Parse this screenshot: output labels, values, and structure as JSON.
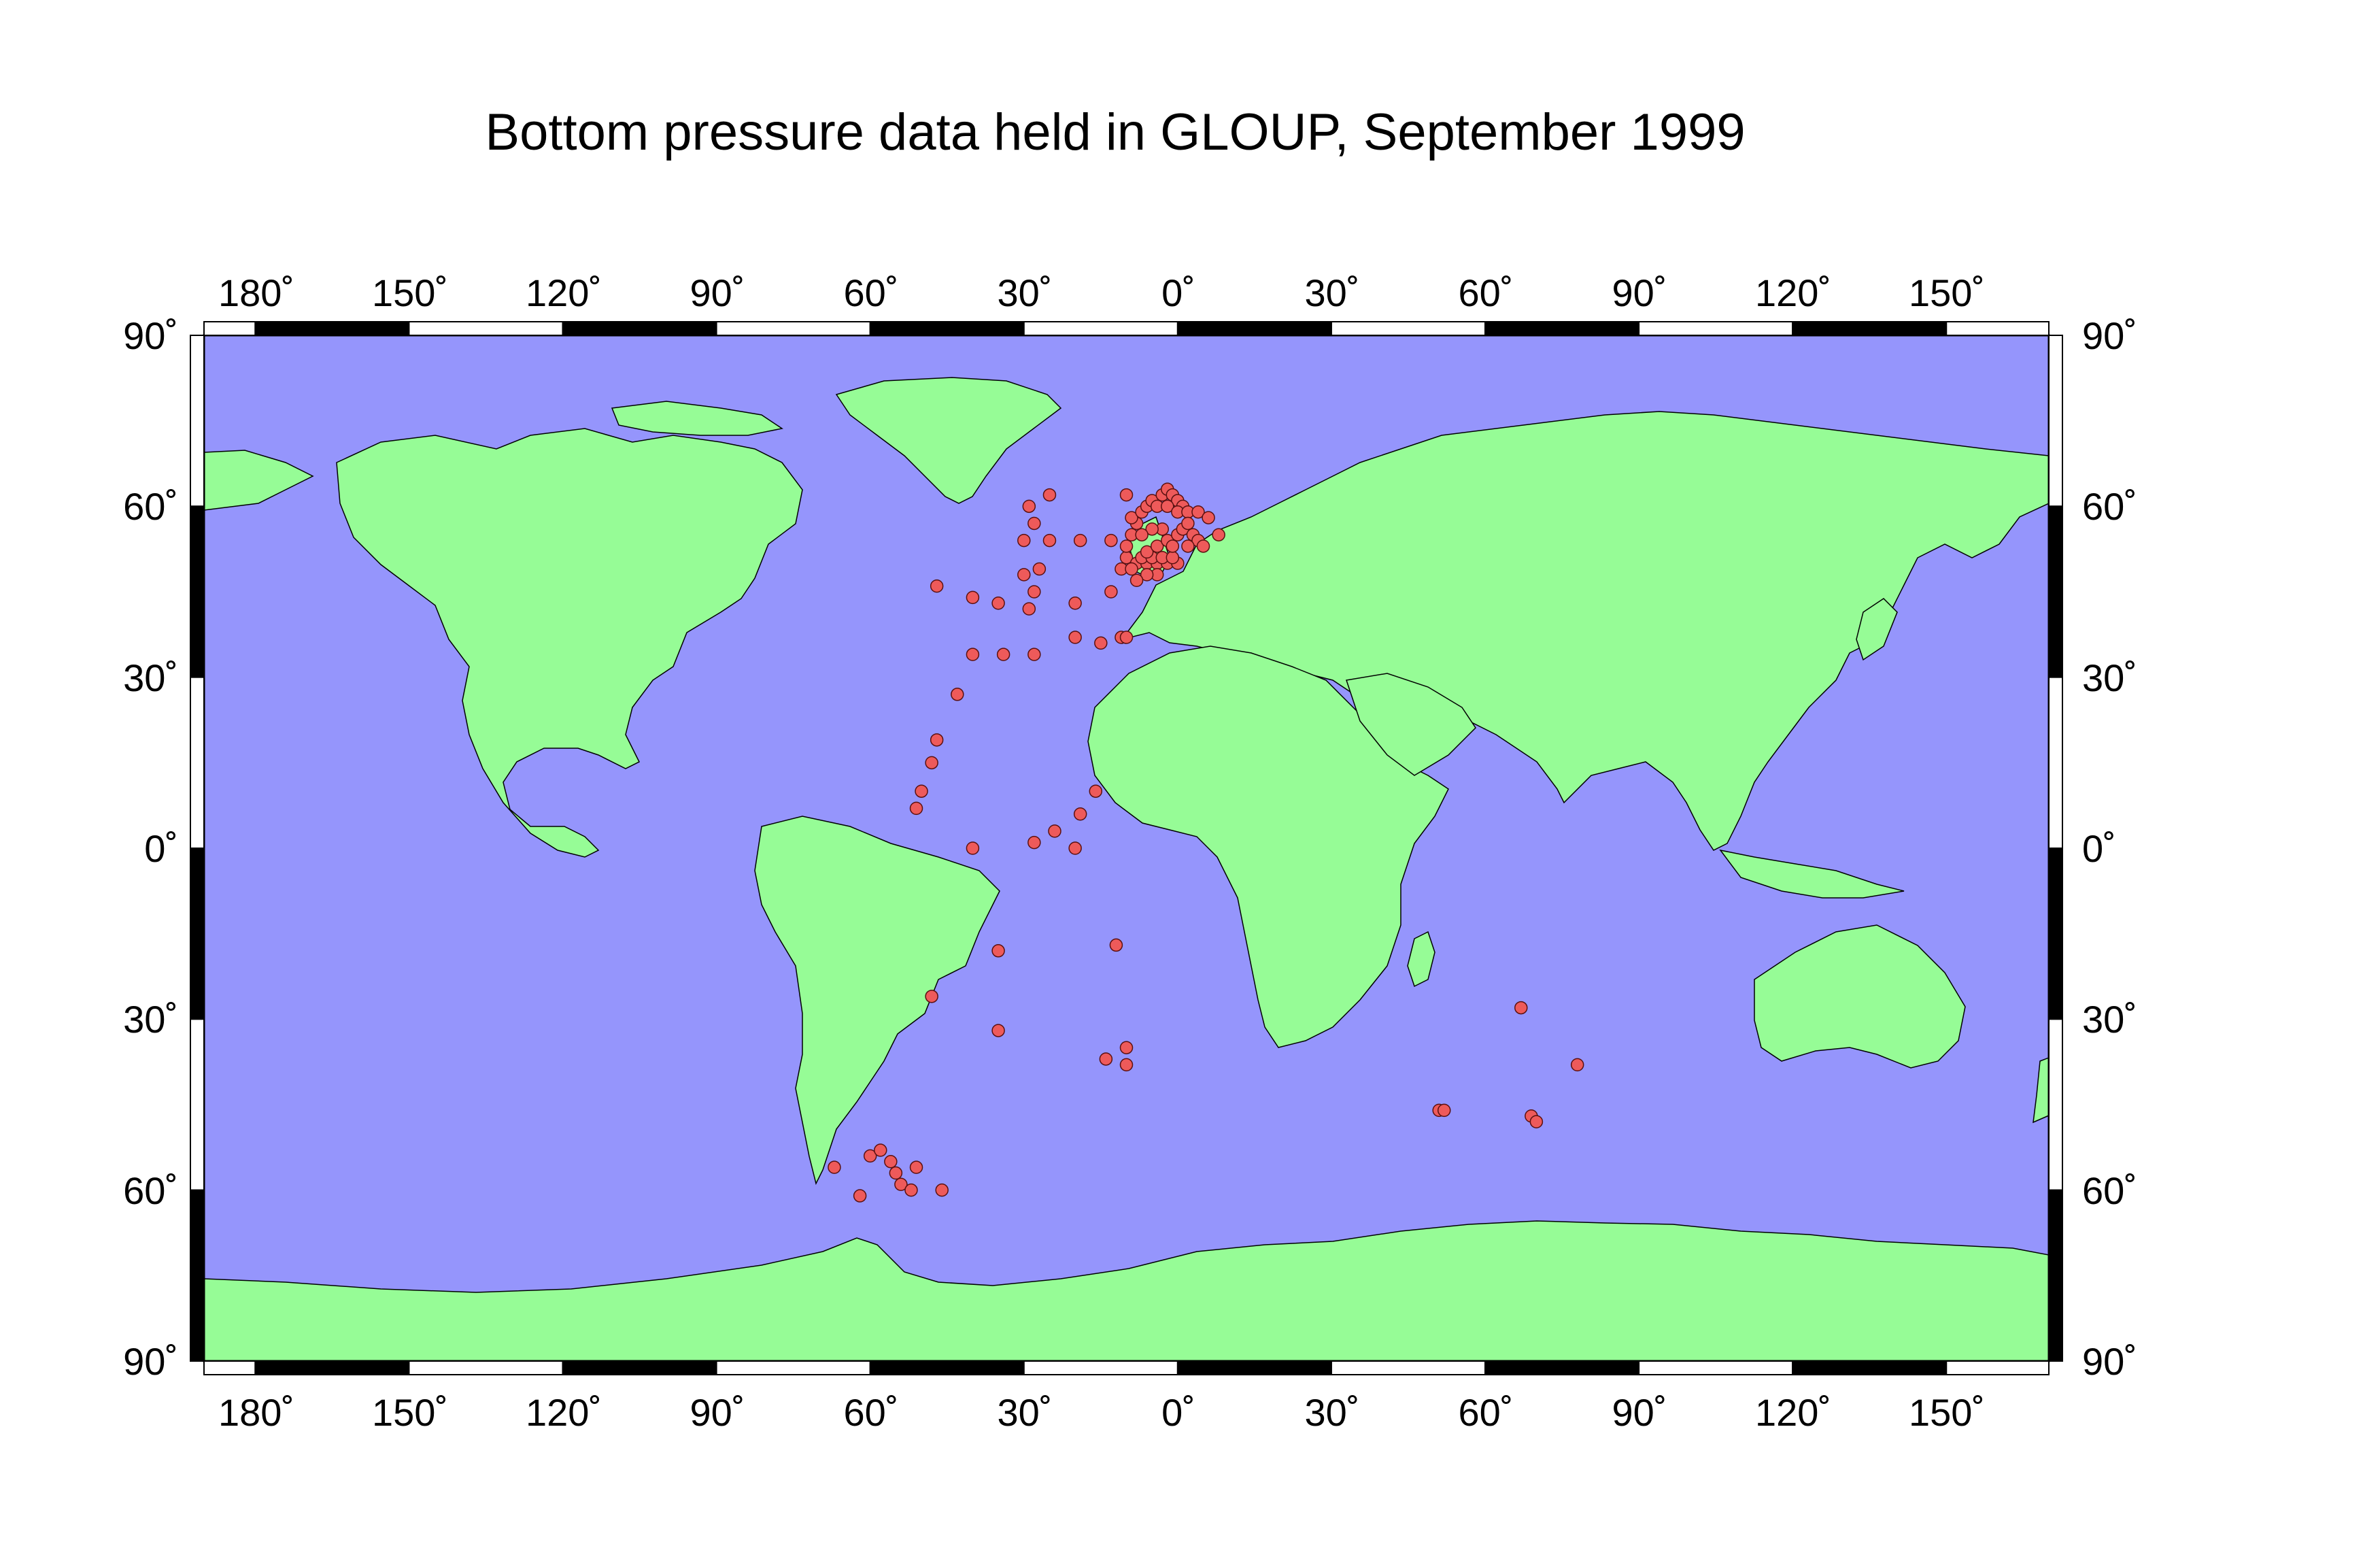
{
  "title": "Bottom pressure data held in GLOUP, September 1999",
  "colors": {
    "ocean": "#9595fc",
    "land": "#96fc96",
    "station": "#ee5a5a",
    "frame_dark": "#000000",
    "frame_light": "#ffffff"
  },
  "axes": {
    "top_labels": [
      "180˚",
      "150˚",
      "120˚",
      "90˚",
      "60˚",
      "30˚",
      "0˚",
      "30˚",
      "60˚",
      "90˚",
      "120˚",
      "150˚"
    ],
    "bottom_labels": [
      "180˚",
      "150˚",
      "120˚",
      "90˚",
      "60˚",
      "30˚",
      "0˚",
      "30˚",
      "60˚",
      "90˚",
      "120˚",
      "150˚"
    ],
    "left_labels": [
      "90˚",
      "60˚",
      "30˚",
      "0˚",
      "30˚",
      "60˚",
      "90˚"
    ],
    "right_labels": [
      "90˚",
      "60˚",
      "30˚",
      "0˚",
      "30˚",
      "60˚",
      "90˚"
    ],
    "lon_range": [
      -190,
      170
    ],
    "lat_range": [
      -90,
      90
    ]
  },
  "map_data": {
    "projection": "equirectangular",
    "layers": [
      "ocean",
      "land",
      "stations"
    ],
    "stations": [
      [
        -47,
        46
      ],
      [
        -40,
        44
      ],
      [
        -35,
        43
      ],
      [
        -29,
        42
      ],
      [
        -28,
        45
      ],
      [
        -30,
        48
      ],
      [
        -27,
        49
      ],
      [
        -20,
        43
      ],
      [
        -13,
        45
      ],
      [
        -11,
        37
      ],
      [
        -15,
        36
      ],
      [
        -20,
        37
      ],
      [
        -10,
        37
      ],
      [
        -28,
        57
      ],
      [
        -30,
        54
      ],
      [
        -25,
        54
      ],
      [
        -29,
        60
      ],
      [
        -25,
        62
      ],
      [
        -19,
        54
      ],
      [
        -13,
        54
      ],
      [
        -10,
        62
      ],
      [
        -11,
        49
      ],
      [
        -10,
        51
      ],
      [
        -10,
        53
      ],
      [
        -9,
        55
      ],
      [
        -8,
        57
      ],
      [
        -9,
        58
      ],
      [
        -7,
        59
      ],
      [
        -6,
        60
      ],
      [
        -5,
        61
      ],
      [
        -3,
        62
      ],
      [
        -2,
        63
      ],
      [
        -1,
        62
      ],
      [
        0,
        61
      ],
      [
        1,
        60
      ],
      [
        -4,
        60
      ],
      [
        -2,
        60
      ],
      [
        0,
        59
      ],
      [
        2,
        59
      ],
      [
        4,
        59
      ],
      [
        6,
        58
      ],
      [
        -8,
        50
      ],
      [
        -6,
        50
      ],
      [
        -4,
        50
      ],
      [
        -2,
        50
      ],
      [
        0,
        50
      ],
      [
        -7,
        51
      ],
      [
        -5,
        51
      ],
      [
        -3,
        51
      ],
      [
        -1,
        51
      ],
      [
        -6,
        52
      ],
      [
        -4,
        53
      ],
      [
        -2,
        54
      ],
      [
        0,
        55
      ],
      [
        1,
        56
      ],
      [
        2,
        57
      ],
      [
        3,
        55
      ],
      [
        4,
        54
      ],
      [
        5,
        53
      ],
      [
        2,
        53
      ],
      [
        -1,
        53
      ],
      [
        -3,
        56
      ],
      [
        -5,
        56
      ],
      [
        -7,
        55
      ],
      [
        -4,
        48
      ],
      [
        -6,
        48
      ],
      [
        -8,
        47
      ],
      [
        -9,
        49
      ],
      [
        8,
        55
      ],
      [
        -40,
        34
      ],
      [
        -34,
        34
      ],
      [
        -28,
        34
      ],
      [
        -43,
        27
      ],
      [
        -47,
        19
      ],
      [
        -48,
        15
      ],
      [
        -50,
        10
      ],
      [
        -51,
        7
      ],
      [
        -40,
        0
      ],
      [
        -28,
        1
      ],
      [
        -24,
        3
      ],
      [
        -20,
        0
      ],
      [
        -19,
        6
      ],
      [
        -16,
        10
      ],
      [
        -35,
        -18
      ],
      [
        -12,
        -17
      ],
      [
        -48,
        -26
      ],
      [
        -35,
        -32
      ],
      [
        -14,
        -37
      ],
      [
        -10,
        -35
      ],
      [
        -10,
        -38
      ],
      [
        -67,
        -56
      ],
      [
        -62,
        -61
      ],
      [
        -60,
        -54
      ],
      [
        -58,
        -53
      ],
      [
        -56,
        -55
      ],
      [
        -55,
        -57
      ],
      [
        -54,
        -59
      ],
      [
        -52,
        -60
      ],
      [
        -51,
        -56
      ],
      [
        -46,
        -60
      ],
      [
        51,
        -46
      ],
      [
        52,
        -46
      ],
      [
        67,
        -28
      ],
      [
        78,
        -38
      ],
      [
        69,
        -47
      ],
      [
        70,
        -48
      ]
    ]
  }
}
